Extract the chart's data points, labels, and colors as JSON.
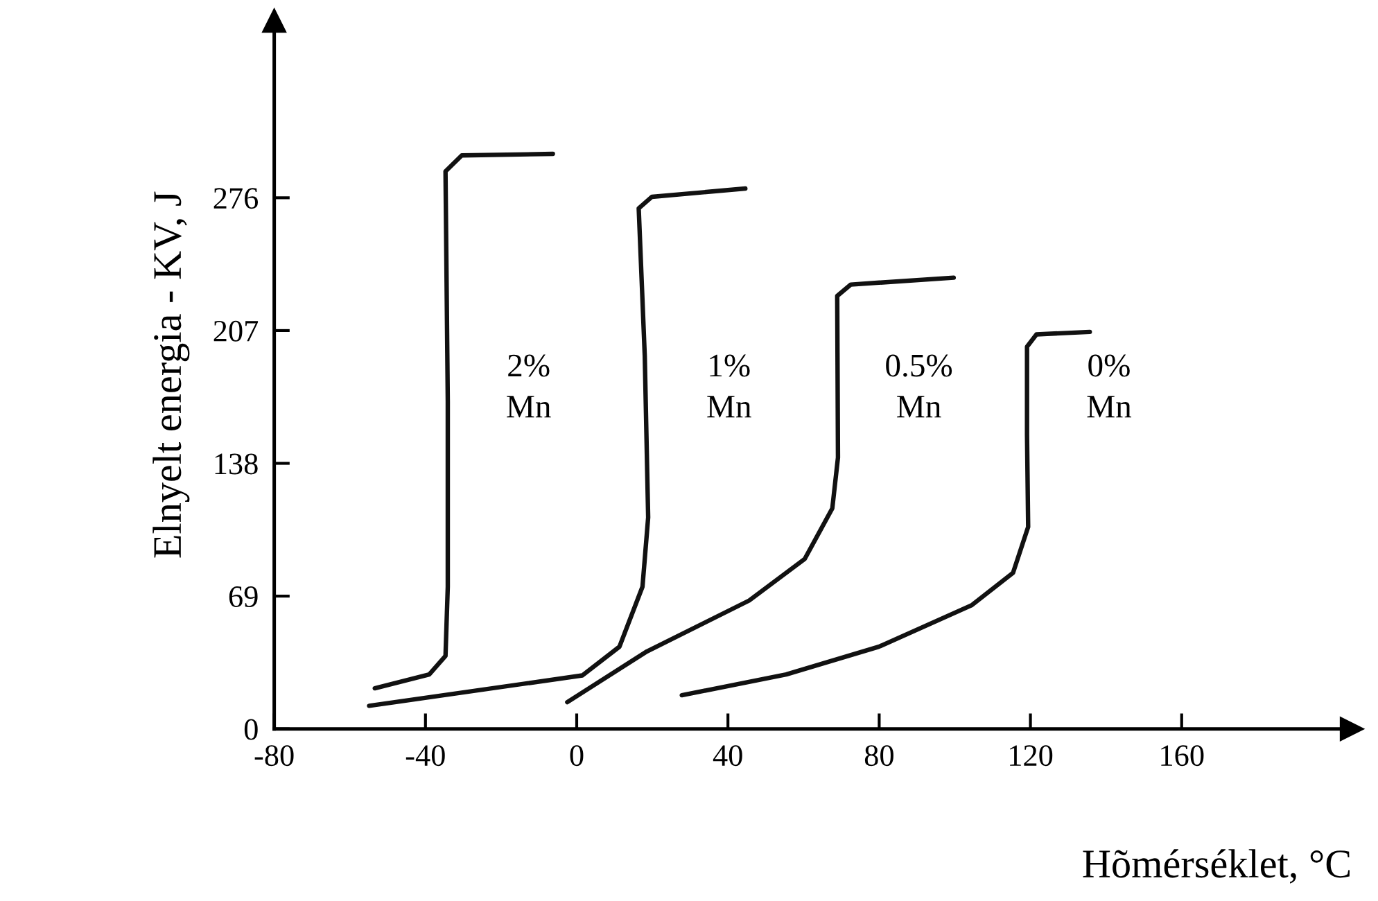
{
  "chart_data": {
    "type": "line",
    "xlabel": "Hõmérséklet, °C",
    "ylabel": "Elnyelt energia - KV, J",
    "xlim": [
      -80,
      205
    ],
    "ylim": [
      0,
      368
    ],
    "xticks": [
      -80,
      -40,
      0,
      40,
      80,
      120,
      160
    ],
    "yticks": [
      0,
      69,
      138,
      207,
      276
    ],
    "grid": false,
    "legend": false,
    "marker": "none",
    "line_style": "solid",
    "series": [
      {
        "name": "2%\nMn",
        "color": "#111111",
        "x": [
          -53.4,
          -39,
          -34.7,
          -34.1,
          -34.1,
          -34.7,
          -30.4,
          -6.3
        ],
        "values": [
          21.1,
          28.3,
          37.9,
          73.9,
          170,
          289.7,
          298,
          298.8
        ]
      },
      {
        "name": "1%\nMn",
        "color": "#111111",
        "x": [
          -54.9,
          1.5,
          11.3,
          17.4,
          18.9,
          18,
          16.4,
          19.9,
          44.6
        ],
        "values": [
          12,
          27.8,
          42.7,
          73.9,
          109.9,
          193.8,
          270.5,
          276.5,
          280.8
        ]
      },
      {
        "name": "0.5%\nMn",
        "color": "#111111",
        "x": [
          -2.5,
          18.6,
          45.6,
          60.3,
          67.6,
          69.1,
          68.9,
          72.5,
          99.7
        ],
        "values": [
          13.9,
          40.3,
          66.7,
          88.3,
          114.6,
          141,
          225,
          230.9,
          234.5
        ]
      },
      {
        "name": "0%\nMn",
        "color": "#111111",
        "x": [
          27.8,
          55.4,
          79.9,
          104.4,
          115.4,
          119.4,
          119.1,
          119.1,
          121.6,
          135.7
        ],
        "values": [
          17.5,
          28.3,
          42.7,
          64.2,
          81.1,
          105,
          153,
          198.6,
          205,
          206.3
        ]
      }
    ]
  }
}
